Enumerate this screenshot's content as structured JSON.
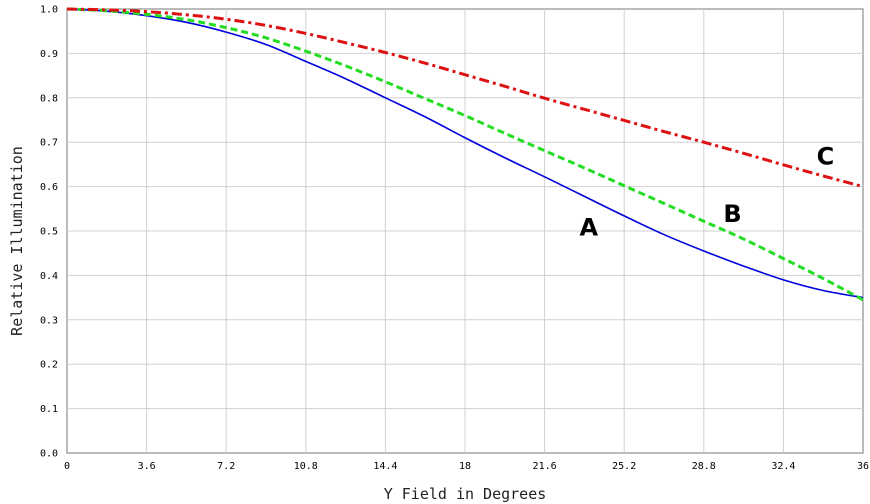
{
  "chart_data": {
    "type": "line",
    "title": "",
    "xlabel": "Y Field in Degrees",
    "ylabel": "Relative Illumination",
    "xlim": [
      0,
      36
    ],
    "ylim": [
      0,
      1.0
    ],
    "x_ticks": [
      "0",
      "3.6",
      "7.2",
      "10.8",
      "14.4",
      "18",
      "21.6",
      "25.2",
      "28.8",
      "32.4",
      "36"
    ],
    "y_ticks": [
      "0.0",
      "0.1",
      "0.2",
      "0.3",
      "0.4",
      "0.5",
      "0.6",
      "0.7",
      "0.8",
      "0.9",
      "1.0"
    ],
    "grid": true,
    "series": [
      {
        "name": "A",
        "color": "#0000dd",
        "style": "solid",
        "x": [
          0,
          1.8,
          3.6,
          5.4,
          7.2,
          9.0,
          10.8,
          12.6,
          14.4,
          16.2,
          18,
          19.8,
          21.6,
          23.4,
          25.2,
          27.0,
          28.8,
          30.6,
          32.4,
          34.2,
          36
        ],
        "y": [
          1.0,
          0.995,
          0.985,
          0.97,
          0.948,
          0.92,
          0.882,
          0.843,
          0.8,
          0.757,
          0.71,
          0.665,
          0.622,
          0.578,
          0.534,
          0.492,
          0.455,
          0.421,
          0.39,
          0.366,
          0.35
        ]
      },
      {
        "name": "B",
        "color": "#22dd22",
        "style": "dashed",
        "x": [
          0,
          1.8,
          3.6,
          5.4,
          7.2,
          9.0,
          10.8,
          12.6,
          14.4,
          16.2,
          18,
          19.8,
          21.6,
          23.4,
          25.2,
          27.0,
          28.8,
          30.6,
          32.4,
          34.2,
          36
        ],
        "y": [
          1.0,
          0.996,
          0.988,
          0.976,
          0.958,
          0.935,
          0.905,
          0.872,
          0.836,
          0.798,
          0.76,
          0.72,
          0.681,
          0.642,
          0.602,
          0.562,
          0.522,
          0.482,
          0.438,
          0.393,
          0.345
        ]
      },
      {
        "name": "C",
        "color": "#dd1111",
        "style": "dashdot",
        "x": [
          0,
          1.8,
          3.6,
          5.4,
          7.2,
          9.0,
          10.8,
          12.6,
          14.4,
          16.2,
          18,
          19.8,
          21.6,
          23.4,
          25.2,
          27.0,
          28.8,
          30.6,
          32.4,
          34.2,
          36
        ],
        "y": [
          1.0,
          0.998,
          0.994,
          0.987,
          0.977,
          0.963,
          0.945,
          0.924,
          0.902,
          0.878,
          0.852,
          0.826,
          0.799,
          0.774,
          0.749,
          0.724,
          0.7,
          0.675,
          0.649,
          0.624,
          0.6
        ]
      }
    ],
    "annotations": [
      {
        "text": "A",
        "x": 23.6,
        "y": 0.51
      },
      {
        "text": "B",
        "x": 30.1,
        "y": 0.54
      },
      {
        "text": "C",
        "x": 34.3,
        "y": 0.67
      }
    ]
  }
}
